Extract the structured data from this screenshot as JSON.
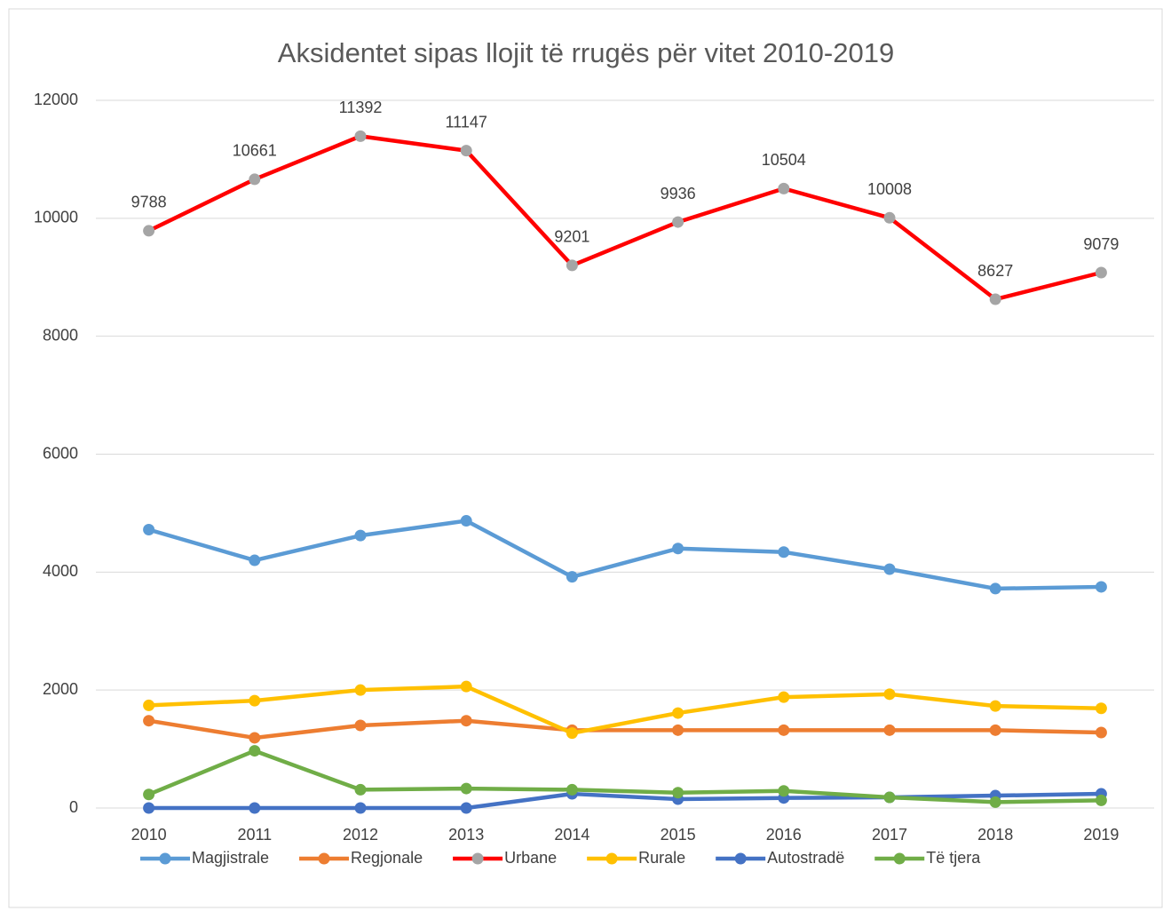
{
  "chart_data": {
    "type": "line",
    "title": "Aksidentet sipas llojit të rrugës për vitet 2010-2019",
    "categories": [
      "2010",
      "2011",
      "2012",
      "2013",
      "2014",
      "2015",
      "2016",
      "2017",
      "2018",
      "2019"
    ],
    "ylim": [
      0,
      12000
    ],
    "yticks": [
      0,
      2000,
      4000,
      6000,
      8000,
      10000,
      12000
    ],
    "grid": true,
    "legend": "bottom",
    "series": [
      {
        "name": "Magjistrale",
        "color": "#5B9BD5",
        "values": [
          4720,
          4200,
          4620,
          4870,
          3920,
          4400,
          4340,
          4050,
          3720,
          3750
        ]
      },
      {
        "name": "Regjonale",
        "color": "#ED7D31",
        "values": [
          1480,
          1190,
          1400,
          1480,
          1320,
          1320,
          1320,
          1320,
          1320,
          1280
        ]
      },
      {
        "name": "Urbane",
        "color": "#FF0000",
        "marker_color": "#A5A5A5",
        "data_labels": true,
        "values": [
          9788,
          10661,
          11392,
          11147,
          9201,
          9936,
          10504,
          10008,
          8627,
          9079
        ]
      },
      {
        "name": "Rurale",
        "color": "#FFC000",
        "values": [
          1740,
          1820,
          2000,
          2060,
          1270,
          1610,
          1880,
          1930,
          1730,
          1690
        ]
      },
      {
        "name": "Autostradë",
        "color": "#4472C4",
        "values": [
          0,
          0,
          0,
          0,
          240,
          150,
          170,
          180,
          210,
          240
        ]
      },
      {
        "name": "Të tjera",
        "color": "#70AD47",
        "values": [
          230,
          970,
          310,
          330,
          310,
          260,
          290,
          180,
          100,
          130
        ]
      }
    ]
  }
}
